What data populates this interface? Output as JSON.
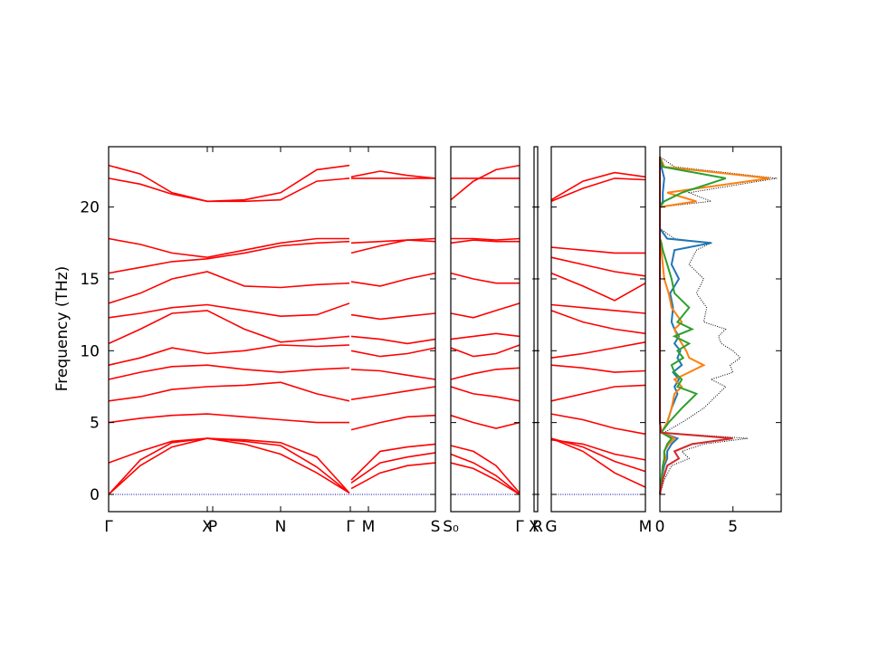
{
  "chart_data": [
    {
      "type": "band",
      "ylabel": "Frequency (THz)",
      "ytick_labels": true,
      "color": "#ff0000",
      "hline": 0,
      "hline_color": "#0000aa",
      "xlim": [
        0,
        3.61
      ],
      "ylim": [
        -1.2,
        24.2
      ],
      "yticks": [
        0,
        5,
        10,
        15,
        20
      ],
      "xticks": [
        {
          "value": 0,
          "label": "Γ"
        },
        {
          "value": 1.09,
          "label": "X"
        },
        {
          "value": 1.15,
          "label": "P"
        },
        {
          "value": 1.9,
          "label": "N"
        },
        {
          "value": 2.67,
          "label": "Γ"
        },
        {
          "value": 2.87,
          "label": "M"
        },
        {
          "value": 3.61,
          "label": "S"
        }
      ],
      "x": [
        0,
        0.35,
        0.7,
        1.09,
        1.5,
        1.9,
        2.3,
        2.66,
        2.67,
        2.68,
        3.0,
        3.3,
        3.61
      ],
      "series": [
        {
          "values": [
            0,
            2.0,
            3.3,
            3.9,
            3.5,
            2.8,
            1.5,
            0.1,
            null,
            0.4,
            1.5,
            2.0,
            2.2
          ]
        },
        {
          "values": [
            0,
            2.4,
            3.6,
            3.9,
            3.7,
            3.4,
            1.9,
            0.1,
            null,
            0.8,
            2.2,
            2.6,
            2.9
          ]
        },
        {
          "values": [
            2.2,
            3.0,
            3.7,
            3.9,
            3.8,
            3.6,
            2.6,
            0.1,
            null,
            1.0,
            3.0,
            3.3,
            3.5
          ]
        },
        {
          "values": [
            5.0,
            5.3,
            5.5,
            5.6,
            5.4,
            5.2,
            5.0,
            5.0,
            null,
            4.5,
            5.0,
            5.4,
            5.5
          ]
        },
        {
          "values": [
            6.5,
            6.8,
            7.3,
            7.5,
            7.6,
            7.8,
            7.0,
            6.5,
            null,
            6.6,
            6.9,
            7.2,
            7.5
          ]
        },
        {
          "values": [
            8.0,
            8.5,
            8.9,
            9.0,
            8.7,
            8.5,
            8.7,
            8.8,
            null,
            8.7,
            8.6,
            8.3,
            8.0
          ]
        },
        {
          "values": [
            9.0,
            9.5,
            10.2,
            9.8,
            10.0,
            10.4,
            10.3,
            10.4,
            null,
            10.0,
            9.6,
            9.8,
            10.2
          ]
        },
        {
          "values": [
            10.5,
            11.5,
            12.6,
            12.8,
            11.5,
            10.6,
            10.8,
            11.0,
            null,
            11.0,
            10.8,
            10.5,
            10.8
          ]
        },
        {
          "values": [
            12.3,
            12.6,
            13.0,
            13.2,
            12.8,
            12.4,
            12.5,
            13.3,
            null,
            12.5,
            12.2,
            12.4,
            12.6
          ]
        },
        {
          "values": [
            13.3,
            14.0,
            15.0,
            15.5,
            14.5,
            14.4,
            14.6,
            14.7,
            null,
            14.8,
            14.5,
            15.0,
            15.4
          ]
        },
        {
          "values": [
            15.4,
            15.8,
            16.2,
            16.4,
            16.8,
            17.3,
            17.5,
            17.6,
            null,
            16.8,
            17.3,
            17.7,
            17.6
          ]
        },
        {
          "values": [
            17.8,
            17.4,
            16.8,
            16.5,
            17.0,
            17.5,
            17.8,
            17.8,
            null,
            17.5,
            17.6,
            17.7,
            17.8
          ]
        },
        {
          "values": [
            22.0,
            21.6,
            20.9,
            20.4,
            20.4,
            20.5,
            21.8,
            22.0,
            null,
            22.0,
            22.0,
            22.0,
            22.0
          ]
        },
        {
          "values": [
            22.9,
            22.3,
            21.0,
            20.4,
            20.5,
            21.0,
            22.6,
            22.9,
            null,
            22.1,
            22.5,
            22.2,
            22.0
          ]
        }
      ]
    },
    {
      "type": "band",
      "color": "#ff0000",
      "hline": 0,
      "hline_color": "#0000aa",
      "xlim": [
        0,
        0.76
      ],
      "ylim": [
        -1.2,
        24.2
      ],
      "yticks": [
        0,
        5,
        10,
        15,
        20
      ],
      "xticks": [
        {
          "value": 0,
          "label": "S₀"
        },
        {
          "value": 0.76,
          "label": "Γ"
        }
      ],
      "x": [
        0,
        0.25,
        0.5,
        0.76
      ],
      "series": [
        {
          "values": [
            2.2,
            1.8,
            1.0,
            0
          ]
        },
        {
          "values": [
            2.8,
            2.2,
            1.3,
            0
          ]
        },
        {
          "values": [
            3.4,
            3.0,
            2.0,
            0.1
          ]
        },
        {
          "values": [
            5.5,
            5.0,
            4.6,
            5.0
          ]
        },
        {
          "values": [
            7.5,
            7.0,
            6.8,
            6.5
          ]
        },
        {
          "values": [
            8.0,
            8.4,
            8.7,
            8.8
          ]
        },
        {
          "values": [
            10.2,
            9.6,
            9.8,
            10.4
          ]
        },
        {
          "values": [
            10.8,
            11.0,
            11.2,
            11.0
          ]
        },
        {
          "values": [
            12.6,
            12.3,
            12.8,
            13.3
          ]
        },
        {
          "values": [
            15.4,
            15.0,
            14.7,
            14.7
          ]
        },
        {
          "values": [
            17.5,
            17.7,
            17.6,
            17.6
          ]
        },
        {
          "values": [
            17.8,
            17.8,
            17.7,
            17.8
          ]
        },
        {
          "values": [
            22.0,
            22.0,
            22.0,
            22.0
          ]
        },
        {
          "values": [
            20.5,
            21.8,
            22.6,
            22.9
          ]
        }
      ]
    },
    {
      "type": "band",
      "color": "#ff0000",
      "xlim": [
        0,
        0.04
      ],
      "ylim": [
        -1.2,
        24.2
      ],
      "yticks": [
        0,
        5,
        10,
        15,
        20
      ],
      "xticks": [
        {
          "value": 0,
          "label": "X"
        },
        {
          "value": 0.04,
          "label": "R"
        }
      ]
    },
    {
      "type": "band",
      "color": "#ff0000",
      "hline": 0,
      "hline_color": "#0000aa",
      "xlim": [
        0,
        1.04
      ],
      "ylim": [
        -1.2,
        24.2
      ],
      "yticks": [
        0,
        5,
        10,
        15,
        20
      ],
      "xticks": [
        {
          "value": 0,
          "label": "G"
        },
        {
          "value": 1.04,
          "label": "M"
        }
      ],
      "x": [
        0,
        0.35,
        0.7,
        1.04
      ],
      "series": [
        {
          "values": [
            3.9,
            3.0,
            1.5,
            0.5
          ]
        },
        {
          "values": [
            3.9,
            3.3,
            2.3,
            1.6
          ]
        },
        {
          "values": [
            3.8,
            3.5,
            2.8,
            2.4
          ]
        },
        {
          "values": [
            5.6,
            5.2,
            4.6,
            4.2
          ]
        },
        {
          "values": [
            6.5,
            7.0,
            7.5,
            7.6
          ]
        },
        {
          "values": [
            9.0,
            8.8,
            8.5,
            8.6
          ]
        },
        {
          "values": [
            9.5,
            9.8,
            10.2,
            10.6
          ]
        },
        {
          "values": [
            12.8,
            12.0,
            11.5,
            11.2
          ]
        },
        {
          "values": [
            13.2,
            13.0,
            12.8,
            12.6
          ]
        },
        {
          "values": [
            15.4,
            14.5,
            13.5,
            14.7
          ]
        },
        {
          "values": [
            16.5,
            16.0,
            15.5,
            15.2
          ]
        },
        {
          "values": [
            17.2,
            17.0,
            16.8,
            16.8
          ]
        },
        {
          "values": [
            20.4,
            21.3,
            22.0,
            21.9
          ]
        },
        {
          "values": [
            20.5,
            21.8,
            22.4,
            22.1
          ]
        }
      ]
    },
    {
      "type": "dos",
      "xlim": [
        0,
        8.3
      ],
      "xticks": [
        0,
        5
      ],
      "ylim": [
        -1.2,
        24.2
      ],
      "yticks": [
        0,
        5,
        10,
        15,
        20
      ],
      "y": [
        0,
        1,
        2,
        2.5,
        3,
        3.5,
        3.9,
        4.3,
        5,
        6,
        7,
        7.5,
        8,
        8.5,
        9,
        9.5,
        10,
        10.5,
        11,
        11.5,
        12,
        13,
        14,
        15,
        16,
        17,
        17.5,
        17.8,
        18.5,
        20,
        20.4,
        21,
        22,
        22.8,
        23.5
      ],
      "series": [
        {
          "color": "#000000",
          "dashed": true,
          "values": [
            0,
            0.3,
            0.8,
            2.0,
            1.5,
            3.0,
            6.0,
            0.3,
            1.5,
            3.0,
            4.0,
            4.5,
            3.5,
            5.0,
            4.8,
            5.5,
            5.0,
            4.2,
            4.0,
            4.5,
            3.0,
            3.2,
            2.5,
            3.0,
            2.0,
            2.5,
            3.5,
            1.0,
            0,
            0,
            3.5,
            2.0,
            8.0,
            1.0,
            0
          ]
        },
        {
          "color": "#1f77b4",
          "values": [
            0,
            0.1,
            0.3,
            0.5,
            0.5,
            0.8,
            1.2,
            0.1,
            0.5,
            0.8,
            1.2,
            1.0,
            1.3,
            0.9,
            1.5,
            1.2,
            1.4,
            1.0,
            1.3,
            1.0,
            0.8,
            0.9,
            0.7,
            1.3,
            0.8,
            1.0,
            3.5,
            0.5,
            0,
            0,
            0.2,
            0.2,
            0.3,
            0.1,
            0
          ]
        },
        {
          "color": "#ff7f0e",
          "values": [
            0,
            0.1,
            0.2,
            0.4,
            0.3,
            0.6,
            1.0,
            0.1,
            0.5,
            0.8,
            1.0,
            1.5,
            1.0,
            2.0,
            3.0,
            2.0,
            1.8,
            1.5,
            1.2,
            1.0,
            1.5,
            0.8,
            0.6,
            0.3,
            0.2,
            0.1,
            0.1,
            0,
            0,
            0,
            2.5,
            0.5,
            7.5,
            0.3,
            0
          ]
        },
        {
          "color": "#2ca02c",
          "values": [
            0,
            0.1,
            0.2,
            0.3,
            0.3,
            0.5,
            0.8,
            0.1,
            0.6,
            1.5,
            2.5,
            1.2,
            1.5,
            1.0,
            0.8,
            1.6,
            1.2,
            2.0,
            1.0,
            2.2,
            1.2,
            2.0,
            1.0,
            0.8,
            0.5,
            0.2,
            0.1,
            0,
            0,
            0,
            0.3,
            1.5,
            4.5,
            0.2,
            0
          ]
        },
        {
          "color": "#d62728",
          "values": [
            0,
            0.2,
            0.5,
            1.3,
            1.0,
            2.2,
            5.0,
            0.1,
            0,
            0,
            0,
            0,
            0,
            0,
            0,
            0,
            0,
            0,
            0,
            0,
            0,
            0,
            0,
            0,
            0,
            0,
            0,
            0,
            0,
            0,
            0,
            0,
            0,
            0,
            0
          ]
        }
      ]
    }
  ]
}
